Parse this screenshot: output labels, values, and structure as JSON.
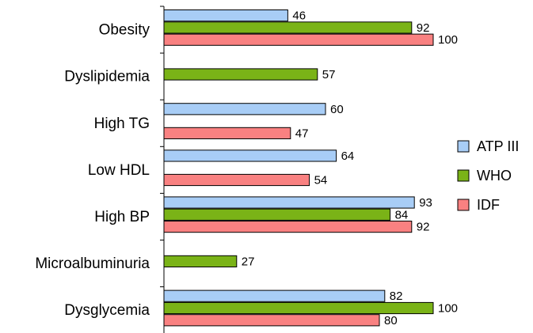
{
  "chart_data": {
    "type": "bar",
    "orientation": "horizontal",
    "categories": [
      "Obesity",
      "Dyslipidemia",
      "High TG",
      "Low HDL",
      "High BP",
      "Microalbuminuria",
      "Dysglycemia"
    ],
    "series": [
      {
        "name": "ATP III",
        "color": "#a8cdf6",
        "values": [
          46,
          null,
          60,
          64,
          93,
          null,
          82
        ]
      },
      {
        "name": "WHO",
        "color": "#7ab317",
        "values": [
          92,
          57,
          null,
          null,
          84,
          27,
          100
        ]
      },
      {
        "name": "IDF",
        "color": "#f98181",
        "values": [
          100,
          null,
          47,
          54,
          92,
          null,
          80
        ]
      }
    ],
    "xlim": [
      0,
      100
    ],
    "grid": false,
    "legend_position": "right"
  }
}
